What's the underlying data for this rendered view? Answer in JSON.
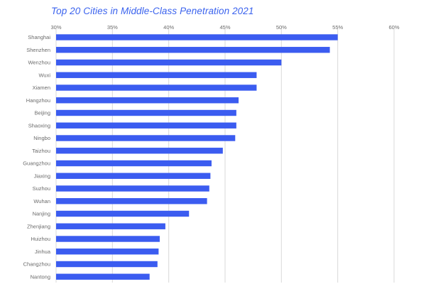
{
  "chart_data": {
    "type": "bar",
    "orientation": "horizontal",
    "title": "Top 20 Cities in Middle-Class Penetration 2021",
    "xlabel": "",
    "ylabel": "",
    "xlim": [
      30,
      60
    ],
    "x_ticks": [
      "30%",
      "35%",
      "40%",
      "45%",
      "50%",
      "55%",
      "60%"
    ],
    "x_tick_values": [
      30,
      35,
      40,
      45,
      50,
      55,
      60
    ],
    "grid": "vertical",
    "bar_color": "#3b5cf0",
    "categories": [
      "Shanghai",
      "Shenzhen",
      "Wenzhou",
      "Wuxi",
      "Xiamen",
      "Hangzhou",
      "Beijing",
      "Shaoxing",
      "Ningbo",
      "Taizhou",
      "Guangzhou",
      "Jiaxing",
      "Suzhou",
      "Wuhan",
      "Nanjing",
      "Zhenjiang",
      "Huizhou",
      "Jinhua",
      "Changzhou",
      "Nantong"
    ],
    "values": [
      55.0,
      54.3,
      50.0,
      47.8,
      47.8,
      46.2,
      46.0,
      46.0,
      45.9,
      44.8,
      43.8,
      43.7,
      43.6,
      43.4,
      41.8,
      39.7,
      39.2,
      39.1,
      39.0,
      38.3
    ]
  }
}
